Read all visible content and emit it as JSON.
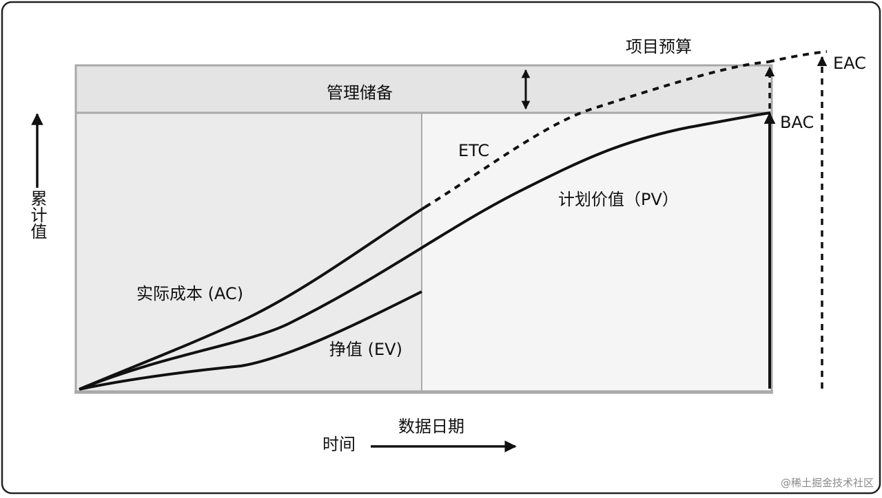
{
  "diagram": {
    "labels": {
      "project_budget": "项目预算",
      "management_reserve": "管理储备",
      "eac": "EAC",
      "bac": "BAC",
      "etc": "ETC",
      "planned_value": "计划价值（PV）",
      "actual_cost": "实际成本 (AC)",
      "earned_value": "挣值 (EV)",
      "y_axis": "累计值",
      "x_axis": "时间",
      "data_date": "数据日期"
    },
    "colors": {
      "frame": "#222222",
      "plot_left_fill": "#ebebeb",
      "plot_right_fill": "#f5f5f5",
      "reserve_fill": "#e4e4e4",
      "border_gray": "#a9a9a9",
      "curve": "#111111"
    }
  },
  "watermark": "@稀土掘金技术社区"
}
